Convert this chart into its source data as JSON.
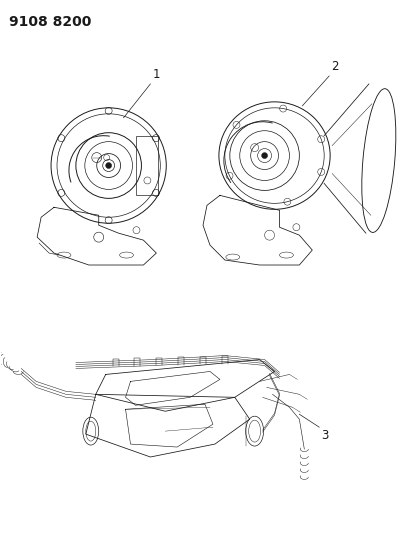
{
  "title": "9108 8200",
  "background_color": "#ffffff",
  "line_color": "#1a1a1a",
  "label_1": "1",
  "label_2": "2",
  "label_3": "3",
  "title_fontsize": 10,
  "label_fontsize": 8.5
}
